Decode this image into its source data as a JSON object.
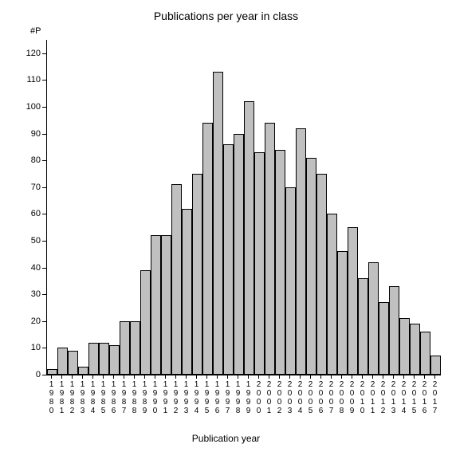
{
  "chart": {
    "type": "bar",
    "title": "Publications per year in class",
    "y_axis_label": "#P",
    "x_axis_label": "Publication year",
    "title_fontsize": 14,
    "label_fontsize": 12,
    "tick_fontsize": 11,
    "background_color": "#ffffff",
    "bar_fill_color": "#c0c0c0",
    "bar_border_color": "#000000",
    "axis_color": "#000000",
    "text_color": "#000000",
    "ylim": [
      0,
      125
    ],
    "yticks": [
      0,
      10,
      20,
      30,
      40,
      50,
      60,
      70,
      80,
      90,
      100,
      110,
      120
    ],
    "bar_width": 1.0,
    "categories": [
      "1980",
      "1981",
      "1982",
      "1983",
      "1984",
      "1985",
      "1986",
      "1987",
      "1988",
      "1989",
      "1990",
      "1991",
      "1992",
      "1993",
      "1994",
      "1995",
      "1996",
      "1997",
      "1998",
      "1999",
      "2000",
      "2001",
      "2002",
      "2003",
      "2004",
      "2005",
      "2006",
      "2007",
      "2008",
      "2009",
      "2010",
      "2011",
      "2012",
      "2013",
      "2014",
      "2015",
      "2016",
      "2017"
    ],
    "values": [
      2,
      10,
      9,
      3,
      12,
      12,
      11,
      20,
      20,
      39,
      52,
      52,
      71,
      62,
      75,
      94,
      113,
      86,
      90,
      102,
      83,
      94,
      84,
      70,
      92,
      81,
      75,
      60,
      46,
      55,
      36,
      42,
      27,
      33,
      21,
      19,
      16,
      7
    ]
  }
}
